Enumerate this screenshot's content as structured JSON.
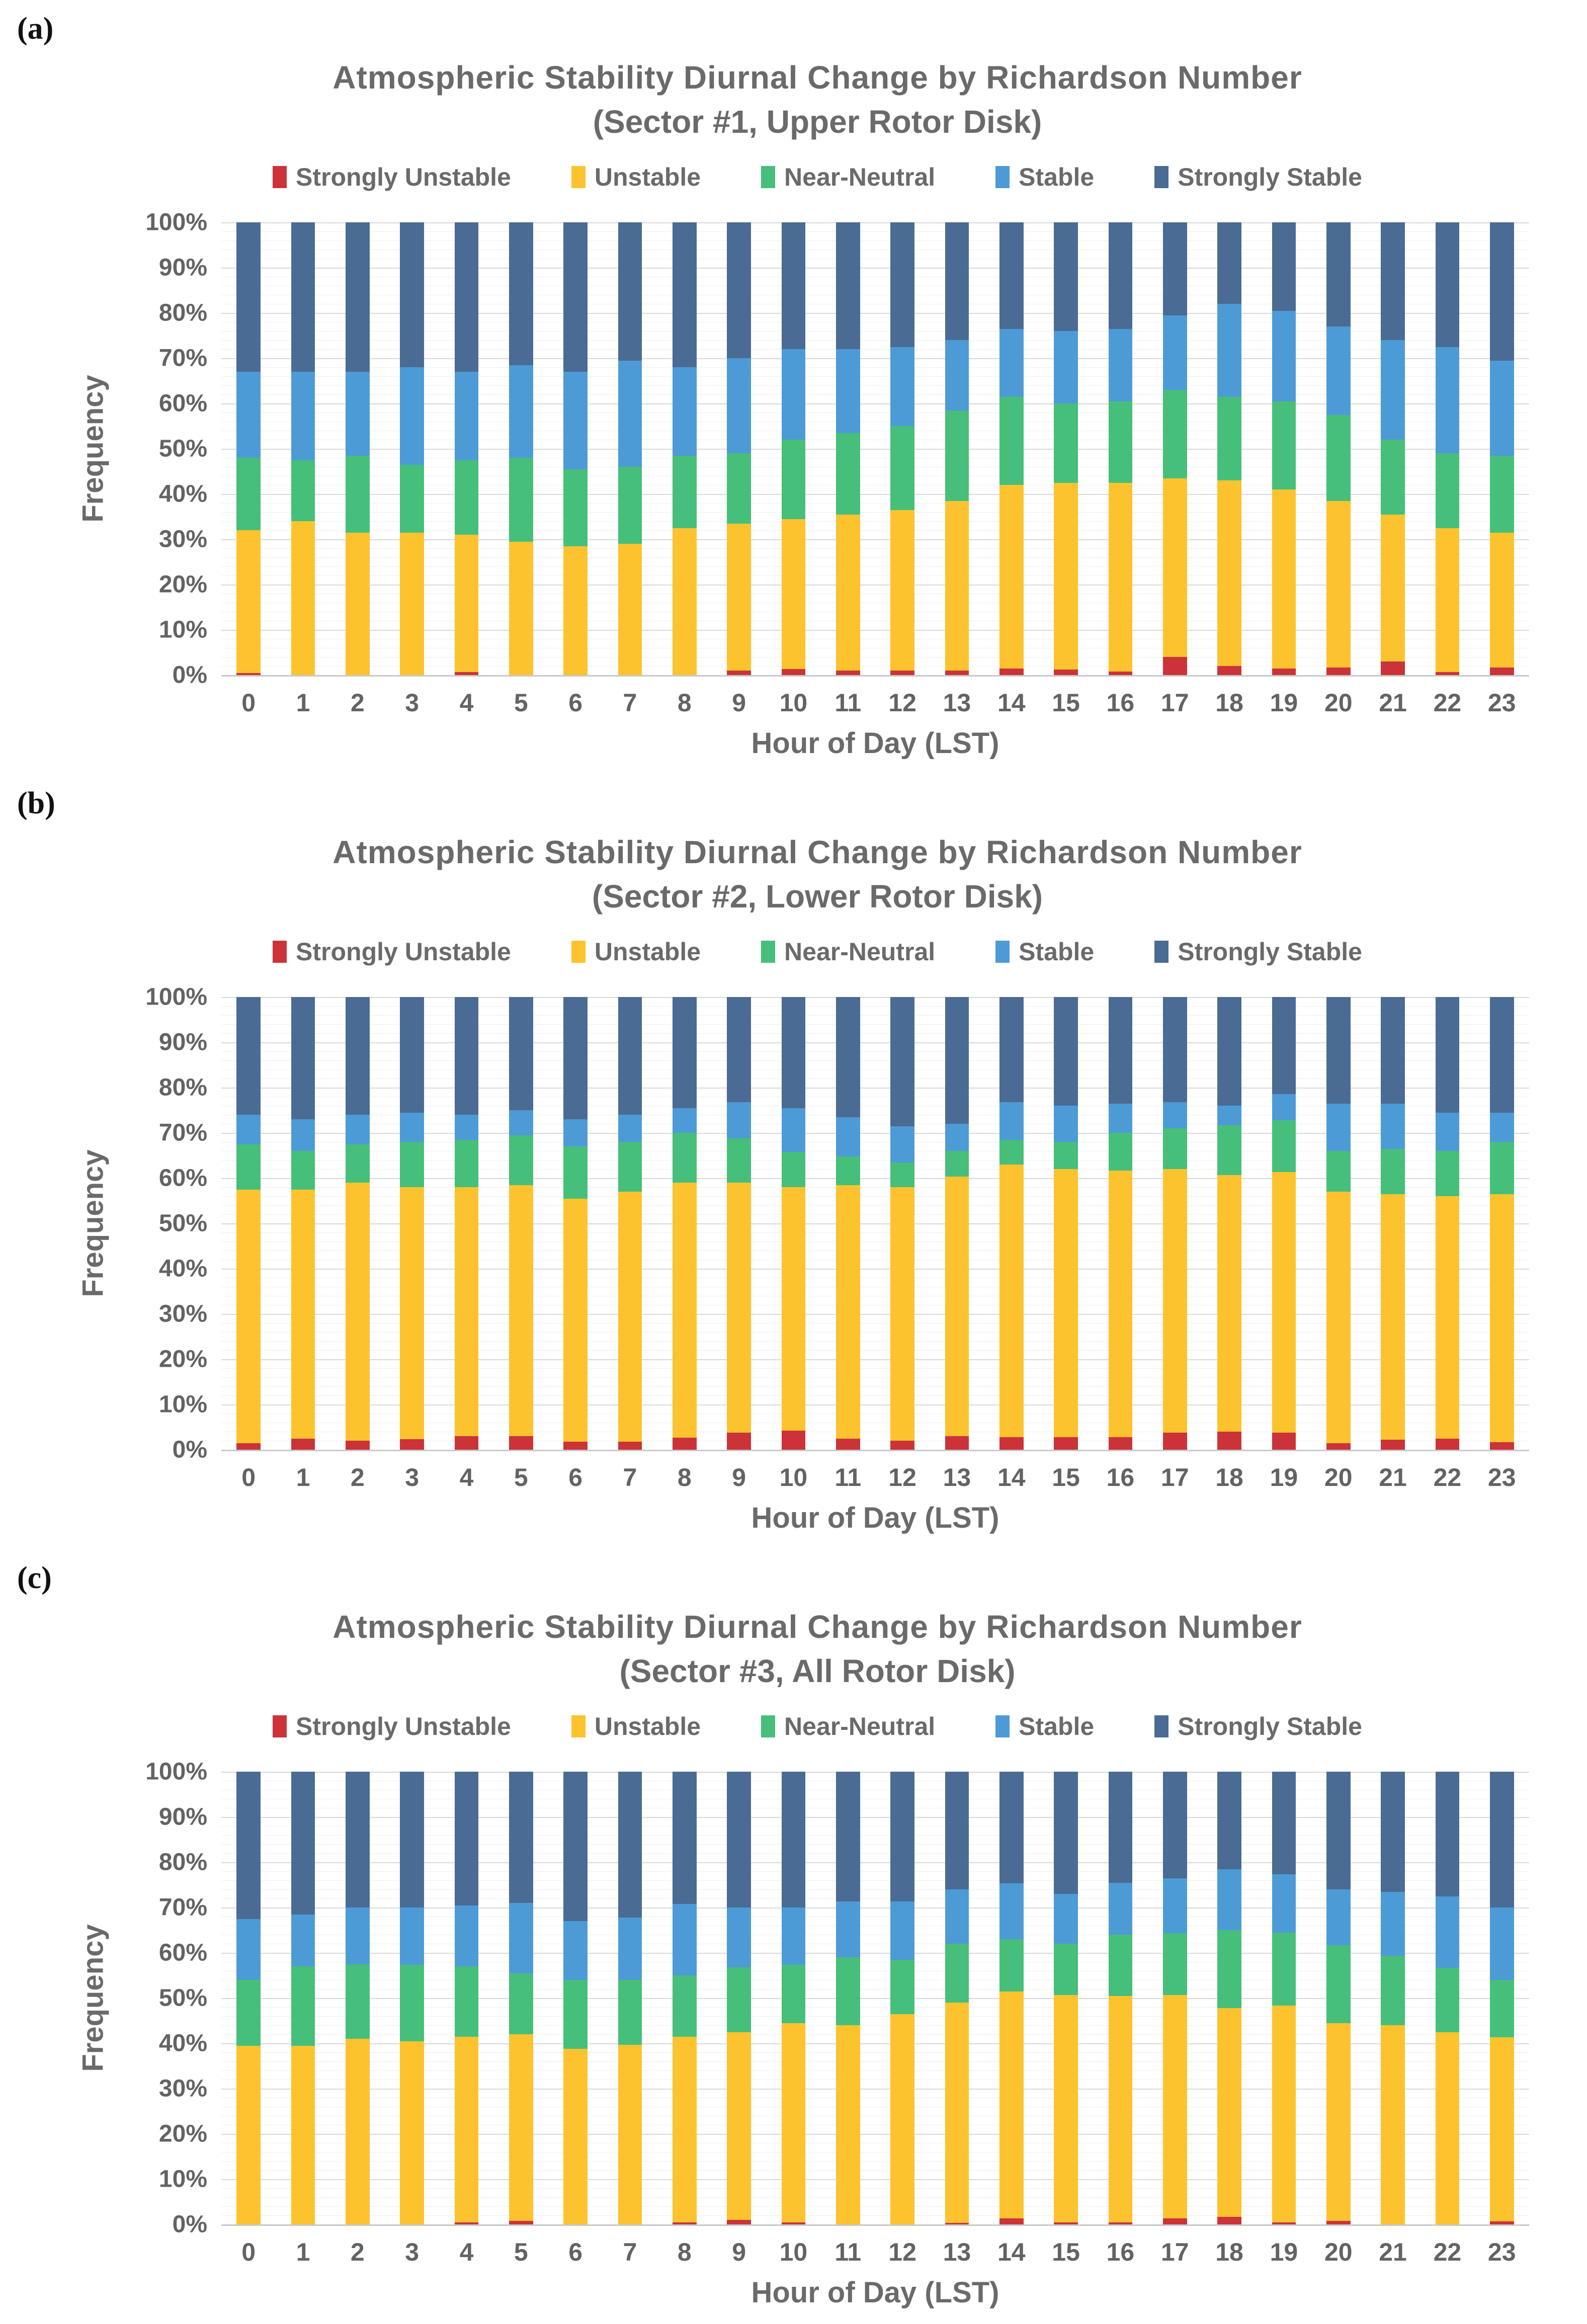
{
  "figure": {
    "panel_labels": [
      "(a)",
      "(b)",
      "(c)"
    ]
  },
  "axis": {
    "ylabel": "Frequency",
    "xlabel": "Hour of Day (LST)",
    "ytick_labels": [
      "100%",
      "90%",
      "80%",
      "70%",
      "60%",
      "50%",
      "40%",
      "30%",
      "20%",
      "10%",
      "0%"
    ]
  },
  "colors": {
    "strongly_unstable": "#cb3339",
    "unstable": "#fdc32e",
    "near_neutral": "#46bf7a",
    "stable": "#4d9bd6",
    "strongly_stable": "#4a6b94",
    "title_text": "#6a6a6a",
    "tick_text": "#636363",
    "major_grid": "#d9d9d9",
    "minor_grid": "#efefef"
  },
  "chart_data": [
    {
      "type": "bar",
      "stacked": true,
      "percent": true,
      "title": "Atmospheric Stability Diurnal Change by Richardson Number",
      "subtitle": "(Sector #1, Upper Rotor Disk)",
      "xlabel": "Hour of Day (LST)",
      "ylabel": "Frequency",
      "ylim": [
        0,
        100
      ],
      "ytick_step": 10,
      "minor_grid_step": 2,
      "grid": true,
      "legend_position": "top",
      "categories": [
        "0",
        "1",
        "2",
        "3",
        "4",
        "5",
        "6",
        "7",
        "8",
        "9",
        "10",
        "11",
        "12",
        "13",
        "14",
        "15",
        "16",
        "17",
        "18",
        "19",
        "20",
        "21",
        "22",
        "23"
      ],
      "series": [
        {
          "name": "Strongly Unstable",
          "color": "#cb3339",
          "values": [
            0.5,
            0,
            0,
            0,
            0.7,
            0,
            0,
            0,
            0,
            1.0,
            1.3,
            1.0,
            1.0,
            1.0,
            1.5,
            1.2,
            0.8,
            4.0,
            2.0,
            1.5,
            1.7,
            3.0,
            0.7,
            1.7
          ]
        },
        {
          "name": "Unstable",
          "color": "#fdc32e",
          "values": [
            31.5,
            34.0,
            31.5,
            31.5,
            30.3,
            29.5,
            28.5,
            29.0,
            32.5,
            32.5,
            33.2,
            34.5,
            35.5,
            37.5,
            40.5,
            41.3,
            41.7,
            39.5,
            41.0,
            39.5,
            36.8,
            32.5,
            31.8,
            29.8
          ]
        },
        {
          "name": "Near-Neutral",
          "color": "#46bf7a",
          "values": [
            16.0,
            13.5,
            17.0,
            15.0,
            16.5,
            18.5,
            17.0,
            17.0,
            16.0,
            15.5,
            17.5,
            18.0,
            18.5,
            20.0,
            19.5,
            17.5,
            18.0,
            19.5,
            18.5,
            19.5,
            19.0,
            16.5,
            16.5,
            17.0
          ]
        },
        {
          "name": "Stable",
          "color": "#4d9bd6",
          "values": [
            19.0,
            19.5,
            18.5,
            21.5,
            19.5,
            20.5,
            21.5,
            23.5,
            19.5,
            21.0,
            20.0,
            18.5,
            17.5,
            15.5,
            15.0,
            16.0,
            16.0,
            16.5,
            20.5,
            20.0,
            19.5,
            22.0,
            23.5,
            21.0
          ]
        },
        {
          "name": "Strongly Stable",
          "color": "#4a6b94",
          "values": [
            33.0,
            33.0,
            33.0,
            32.0,
            33.0,
            31.5,
            33.0,
            30.5,
            32.0,
            30.0,
            28.0,
            28.0,
            27.5,
            26.0,
            23.5,
            24.0,
            23.5,
            20.5,
            18.0,
            19.5,
            23.0,
            26.0,
            27.5,
            30.5
          ]
        }
      ]
    },
    {
      "type": "bar",
      "stacked": true,
      "percent": true,
      "title": "Atmospheric Stability Diurnal Change by Richardson Number",
      "subtitle": "(Sector #2, Lower Rotor Disk)",
      "xlabel": "Hour of Day (LST)",
      "ylabel": "Frequency",
      "ylim": [
        0,
        100
      ],
      "ytick_step": 10,
      "minor_grid_step": 2,
      "grid": true,
      "legend_position": "top",
      "categories": [
        "0",
        "1",
        "2",
        "3",
        "4",
        "5",
        "6",
        "7",
        "8",
        "9",
        "10",
        "11",
        "12",
        "13",
        "14",
        "15",
        "16",
        "17",
        "18",
        "19",
        "20",
        "21",
        "22",
        "23"
      ],
      "series": [
        {
          "name": "Strongly Unstable",
          "color": "#cb3339",
          "values": [
            1.5,
            2.5,
            2.0,
            2.3,
            3.0,
            3.0,
            1.8,
            1.8,
            2.7,
            3.8,
            4.2,
            2.5,
            2.0,
            3.0,
            2.8,
            2.8,
            2.8,
            3.8,
            4.0,
            3.8,
            1.5,
            2.2,
            2.5,
            1.7
          ]
        },
        {
          "name": "Unstable",
          "color": "#fdc32e",
          "values": [
            56.0,
            55.0,
            57.0,
            55.7,
            55.0,
            55.5,
            53.7,
            55.2,
            56.3,
            55.2,
            53.8,
            55.9,
            56.0,
            57.3,
            60.2,
            59.2,
            58.9,
            58.2,
            56.7,
            57.5,
            55.5,
            54.3,
            53.5,
            54.8
          ]
        },
        {
          "name": "Near-Neutral",
          "color": "#46bf7a",
          "values": [
            10.0,
            8.5,
            8.5,
            10.0,
            10.5,
            11.0,
            11.5,
            11.0,
            11.0,
            9.8,
            7.8,
            6.4,
            5.5,
            5.7,
            5.4,
            6.0,
            8.3,
            9.0,
            11.0,
            11.5,
            9.0,
            10.0,
            10.0,
            11.5
          ]
        },
        {
          "name": "Stable",
          "color": "#4d9bd6",
          "values": [
            6.5,
            7.0,
            6.5,
            6.5,
            5.5,
            5.5,
            6.0,
            6.0,
            5.5,
            8.0,
            9.7,
            8.7,
            8.0,
            6.0,
            8.4,
            8.0,
            6.5,
            5.8,
            4.3,
            5.8,
            10.5,
            10.0,
            8.5,
            6.5
          ]
        },
        {
          "name": "Strongly Stable",
          "color": "#4a6b94",
          "values": [
            26.0,
            27.0,
            26.0,
            25.5,
            26.0,
            25.0,
            27.0,
            26.0,
            24.5,
            23.2,
            24.5,
            26.5,
            28.5,
            28.0,
            23.2,
            24.0,
            23.5,
            23.2,
            24.0,
            21.4,
            23.5,
            23.5,
            25.5,
            25.5
          ]
        }
      ]
    },
    {
      "type": "bar",
      "stacked": true,
      "percent": true,
      "title": "Atmospheric Stability Diurnal Change by Richardson Number",
      "subtitle": "(Sector #3, All Rotor Disk)",
      "xlabel": "Hour of Day (LST)",
      "ylabel": "Frequency",
      "ylim": [
        0,
        100
      ],
      "ytick_step": 10,
      "minor_grid_step": 2,
      "grid": true,
      "legend_position": "top",
      "categories": [
        "0",
        "1",
        "2",
        "3",
        "4",
        "5",
        "6",
        "7",
        "8",
        "9",
        "10",
        "11",
        "12",
        "13",
        "14",
        "15",
        "16",
        "17",
        "18",
        "19",
        "20",
        "21",
        "22",
        "23"
      ],
      "series": [
        {
          "name": "Strongly Unstable",
          "color": "#cb3339",
          "values": [
            0,
            0,
            0,
            0,
            0.5,
            0.8,
            0,
            0,
            0.5,
            1.0,
            0.4,
            0,
            0,
            0.3,
            1.3,
            0.4,
            0.5,
            1.3,
            1.7,
            0.5,
            0.8,
            0,
            0,
            0.7
          ]
        },
        {
          "name": "Unstable",
          "color": "#fdc32e",
          "values": [
            39.5,
            39.5,
            41.0,
            40.5,
            41.0,
            41.2,
            38.8,
            39.7,
            41.0,
            41.5,
            44.1,
            44.0,
            46.5,
            48.7,
            50.2,
            50.3,
            50.0,
            49.4,
            46.1,
            47.8,
            43.7,
            44.0,
            42.5,
            40.6
          ]
        },
        {
          "name": "Near-Neutral",
          "color": "#46bf7a",
          "values": [
            14.5,
            17.5,
            16.5,
            16.8,
            15.5,
            13.5,
            15.2,
            14.3,
            13.5,
            14.3,
            12.8,
            15.0,
            12.0,
            13.0,
            11.5,
            11.3,
            13.5,
            13.6,
            17.2,
            16.2,
            17.2,
            15.3,
            14.2,
            12.7
          ]
        },
        {
          "name": "Stable",
          "color": "#4d9bd6",
          "values": [
            13.5,
            11.5,
            12.5,
            12.7,
            13.5,
            15.5,
            13.0,
            13.8,
            15.8,
            13.2,
            12.7,
            12.3,
            12.8,
            12.0,
            12.3,
            11.0,
            11.5,
            12.2,
            13.5,
            12.8,
            12.3,
            14.2,
            15.8,
            16.0
          ]
        },
        {
          "name": "Strongly Stable",
          "color": "#4a6b94",
          "values": [
            32.5,
            31.5,
            30.0,
            30.0,
            29.5,
            29.0,
            33.0,
            32.2,
            29.2,
            30.0,
            30.0,
            28.7,
            28.7,
            26.0,
            24.7,
            27.0,
            24.5,
            23.5,
            21.5,
            22.7,
            26.0,
            26.5,
            27.5,
            30.0
          ]
        }
      ]
    }
  ]
}
